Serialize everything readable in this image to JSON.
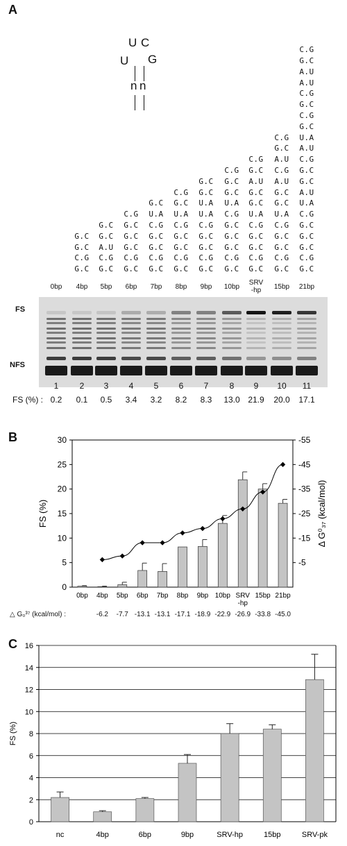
{
  "panelA": {
    "letter": "A",
    "loop": {
      "u1": "U",
      "c": "C",
      "u2": "U",
      "g": "G",
      "n1": "n",
      "n2": "n"
    },
    "stems": [
      [],
      [
        "G.C",
        "G.C",
        "C.G",
        "G.C"
      ],
      [
        "G.C",
        "G.C",
        "A.U",
        "C.G",
        "G.C"
      ],
      [
        "C.G",
        "G.C",
        "G.C",
        "G.C",
        "C.G",
        "G.C"
      ],
      [
        "G.C",
        "U.A",
        "C.G",
        "G.C",
        "G.C",
        "C.G",
        "G.C"
      ],
      [
        "C.G",
        "G.C",
        "U.A",
        "C.G",
        "G.C",
        "G.C",
        "C.G",
        "G.C"
      ],
      [
        "G.C",
        "G.C",
        "U.A",
        "U.A",
        "C.G",
        "G.C",
        "G.C",
        "C.G",
        "G.C"
      ],
      [
        "C.G",
        "G.C",
        "G.C",
        "U.A",
        "C.G",
        "G.C",
        "G.C",
        "G.C",
        "C.G",
        "G.C"
      ],
      [
        "C.G",
        "G.C",
        "A.U",
        "G.C",
        "G.C",
        "U.A",
        "C.G",
        "G.C",
        "G.C",
        "C.G",
        "G.C"
      ],
      [
        "C.G",
        "G.C",
        "A.U",
        "C.G",
        "A.U",
        "G.C",
        "G.C",
        "U.A",
        "C.G",
        "G.C",
        "G.C",
        "C.G",
        "G.C"
      ],
      [
        "C.G",
        "G.C",
        "A.U",
        "A.U",
        "C.G",
        "G.C",
        "C.G",
        "G.C",
        "U.A",
        "A.U",
        "C.G",
        "G.C",
        "G.C",
        "A.U",
        "U.A",
        "C.G",
        "G.C",
        "G.C",
        "G.C",
        "C.G",
        "G.C"
      ]
    ],
    "lanes": [
      "0bp",
      "4bp",
      "5bp",
      "6bp",
      "7bp",
      "8bp",
      "9bp",
      "10bp",
      "SRV\n-hp",
      "15bp",
      "21bp"
    ],
    "gel_labels": {
      "fs": "FS",
      "nfs": "NFS"
    },
    "lane_numbers": [
      "1",
      "2",
      "3",
      "4",
      "5",
      "6",
      "7",
      "8",
      "9",
      "10",
      "11"
    ],
    "fs_label": "FS (%) :",
    "fs_values": [
      "0.2",
      "0.1",
      "0.5",
      "3.4",
      "3.2",
      "8.2",
      "8.3",
      "13.0",
      "21.9",
      "20.0",
      "17.1"
    ],
    "fs_intensity": [
      0.2,
      0.1,
      0.5,
      3.4,
      3.2,
      8.2,
      8.3,
      13.0,
      21.9,
      20.0,
      17.1
    ]
  },
  "panelB": {
    "letter": "B",
    "chart_data": {
      "type": "bar",
      "categories": [
        "0bp",
        "4bp",
        "5bp",
        "6bp",
        "7bp",
        "8bp",
        "9bp",
        "10bp",
        "SRV\n-hp",
        "15bp",
        "21bp"
      ],
      "series": [
        {
          "values": [
            0.2,
            0.1,
            0.5,
            3.4,
            3.2,
            8.2,
            8.3,
            13.0,
            21.9,
            20.0,
            17.1
          ],
          "errors": [
            0.1,
            0.1,
            0.5,
            1.5,
            1.6,
            0.0,
            1.4,
            1.6,
            1.6,
            1.1,
            0.8
          ]
        },
        {
          "type": "line",
          "axis": "right",
          "values": [
            null,
            -6.2,
            -7.7,
            -13.1,
            -13.1,
            -17.1,
            -18.9,
            -22.9,
            -26.9,
            -33.8,
            -45.0
          ]
        }
      ],
      "ylabel": "FS (%)",
      "ylabel_right": "Δ G⁰₃₇ (kcal/mol)",
      "ylim": [
        0,
        30
      ],
      "yticks": [
        0,
        5,
        10,
        15,
        20,
        25,
        30
      ],
      "ylim_right": [
        5,
        -55
      ],
      "yticks_right": [
        "-5",
        "-15",
        "-25",
        "-35",
        "-45",
        "-55"
      ],
      "bar_color": "#c4c4c4",
      "line_color": "#000000"
    },
    "dg_row_label": "△ G₀³⁷ (kcal/mol) :",
    "dg_values": [
      "-6.2",
      "-7.7",
      "-13.1",
      "-13.1",
      "-17.1",
      "-18.9",
      "-22.9",
      "-26.9",
      "-33.8",
      "-45.0"
    ]
  },
  "panelC": {
    "letter": "C",
    "chart_data": {
      "type": "bar",
      "categories": [
        "nc",
        "4bp",
        "6bp",
        "9bp",
        "SRV-hp",
        "15bp",
        "SRV-pk"
      ],
      "series": [
        {
          "values": [
            2.2,
            0.9,
            2.1,
            5.3,
            8.0,
            8.4,
            12.9
          ],
          "errors": [
            0.5,
            0.1,
            0.1,
            0.8,
            0.9,
            0.4,
            2.3
          ]
        }
      ],
      "ylabel": "FS (%)",
      "ylim": [
        0,
        16
      ],
      "yticks": [
        0,
        2,
        4,
        6,
        8,
        10,
        12,
        14,
        16
      ],
      "grid": true,
      "bar_color": "#c4c4c4"
    }
  }
}
